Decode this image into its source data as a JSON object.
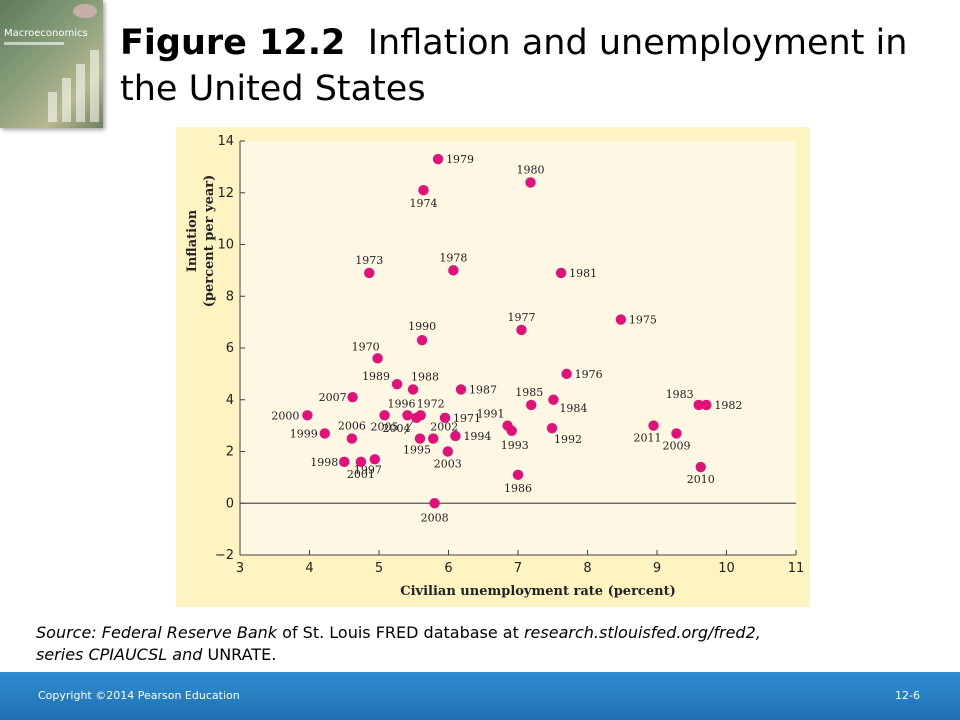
{
  "slide": {
    "title_number": "Figure 12.2",
    "title_text": "Inflation and unemployment in the United States",
    "cover_title": "Macroeconomics"
  },
  "source": {
    "label": "Source:",
    "organization": "Federal Reserve Bank",
    "text_mid": "of St. Louis FRED database at",
    "url": "research.stlouisfed.org/fred2,",
    "series_label": "series CPIAUCSL",
    "and_text": "and",
    "series2": "UNRATE."
  },
  "footer": {
    "copyright": "Copyright ©2014 Pearson Education",
    "slide_number": "12-6"
  },
  "colors": {
    "point": "#e0127a",
    "panel": "#fdf4c2",
    "plot_area": "#fdf7e3",
    "footer": "#1f6fb2"
  },
  "chart_data": {
    "type": "scatter",
    "title": "",
    "xlabel": "Civilian unemployment rate (percent)",
    "ylabel": "Inflation (percent per year)",
    "xlim": [
      3,
      11
    ],
    "ylim": [
      -2,
      14
    ],
    "xticks": [
      3,
      4,
      5,
      6,
      7,
      8,
      9,
      10,
      11
    ],
    "yticks": [
      -2,
      0,
      2,
      4,
      6,
      8,
      10,
      12,
      14
    ],
    "xtick_labels": [
      "3",
      "4",
      "5",
      "6",
      "7",
      "8",
      "9",
      "10",
      "11"
    ],
    "ytick_labels": [
      "−2",
      "0",
      "2",
      "4",
      "6",
      "8",
      "10",
      "12",
      "14"
    ],
    "zero_line": true,
    "grid": false,
    "points": [
      {
        "label": "1970",
        "x": 4.98,
        "y": 5.6
      },
      {
        "label": "1971",
        "x": 5.95,
        "y": 3.3
      },
      {
        "label": "1972",
        "x": 5.6,
        "y": 3.4
      },
      {
        "label": "1973",
        "x": 4.86,
        "y": 8.9
      },
      {
        "label": "1974",
        "x": 5.64,
        "y": 12.1
      },
      {
        "label": "1975",
        "x": 8.48,
        "y": 7.1
      },
      {
        "label": "1976",
        "x": 7.7,
        "y": 5.0
      },
      {
        "label": "1977",
        "x": 7.05,
        "y": 6.7
      },
      {
        "label": "1978",
        "x": 6.07,
        "y": 9.0
      },
      {
        "label": "1979",
        "x": 5.85,
        "y": 13.3
      },
      {
        "label": "1980",
        "x": 7.18,
        "y": 12.4
      },
      {
        "label": "1981",
        "x": 7.62,
        "y": 8.9
      },
      {
        "label": "1982",
        "x": 9.71,
        "y": 3.8
      },
      {
        "label": "1983",
        "x": 9.6,
        "y": 3.8
      },
      {
        "label": "1984",
        "x": 7.51,
        "y": 4.0
      },
      {
        "label": "1985",
        "x": 7.19,
        "y": 3.8
      },
      {
        "label": "1986",
        "x": 7.0,
        "y": 1.1
      },
      {
        "label": "1987",
        "x": 6.18,
        "y": 4.4
      },
      {
        "label": "1988",
        "x": 5.49,
        "y": 4.4
      },
      {
        "label": "1989",
        "x": 5.26,
        "y": 4.6
      },
      {
        "label": "1990",
        "x": 5.62,
        "y": 6.3
      },
      {
        "label": "1991",
        "x": 6.85,
        "y": 3.0
      },
      {
        "label": "1992",
        "x": 7.49,
        "y": 2.9
      },
      {
        "label": "1993",
        "x": 6.91,
        "y": 2.8
      },
      {
        "label": "1994",
        "x": 6.1,
        "y": 2.6
      },
      {
        "label": "1995",
        "x": 5.59,
        "y": 2.5
      },
      {
        "label": "1996",
        "x": 5.41,
        "y": 3.4
      },
      {
        "label": "1997",
        "x": 4.94,
        "y": 1.7
      },
      {
        "label": "1998",
        "x": 4.5,
        "y": 1.6
      },
      {
        "label": "1999",
        "x": 4.22,
        "y": 2.7
      },
      {
        "label": "2000",
        "x": 3.97,
        "y": 3.4
      },
      {
        "label": "2001",
        "x": 4.74,
        "y": 1.6
      },
      {
        "label": "2002",
        "x": 5.78,
        "y": 2.5
      },
      {
        "label": "2003",
        "x": 5.99,
        "y": 2.0
      },
      {
        "label": "2004",
        "x": 5.54,
        "y": 3.3
      },
      {
        "label": "2005",
        "x": 5.08,
        "y": 3.4
      },
      {
        "label": "2006",
        "x": 4.61,
        "y": 2.5
      },
      {
        "label": "2007",
        "x": 4.62,
        "y": 4.1
      },
      {
        "label": "2008",
        "x": 5.8,
        "y": 0.0
      },
      {
        "label": "2009",
        "x": 9.28,
        "y": 2.7
      },
      {
        "label": "2010",
        "x": 9.63,
        "y": 1.4
      },
      {
        "label": "2011",
        "x": 8.95,
        "y": 3.0
      }
    ]
  }
}
